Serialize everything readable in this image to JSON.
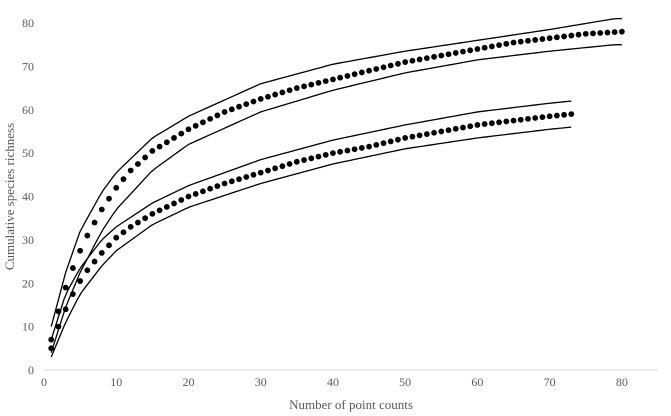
{
  "chart_data": {
    "type": "scatter",
    "title": "",
    "xlabel": "Number of point counts",
    "ylabel": "Cumulative species richness",
    "xlim": [
      0,
      85
    ],
    "ylim": [
      0,
      80
    ],
    "x_ticks": [
      0,
      10,
      20,
      30,
      40,
      50,
      60,
      70,
      80
    ],
    "y_ticks": [
      0,
      10,
      20,
      30,
      40,
      50,
      60,
      70,
      80
    ],
    "grid": false,
    "legend": "none",
    "colors": {
      "points": "#000000",
      "bounds": "#000000",
      "axis": "#d9d9d9",
      "text": "#595959"
    },
    "series": [
      {
        "curve": {
          "x": [
            1,
            2,
            3,
            4,
            5,
            6,
            8,
            10,
            12,
            15,
            20,
            25,
            30,
            35,
            40,
            45,
            50,
            55,
            60,
            65,
            70,
            75,
            80
          ],
          "y": [
            7,
            13.5,
            19,
            23.5,
            27.5,
            31,
            37,
            42,
            46,
            50.5,
            55.5,
            59.5,
            62.5,
            65,
            67,
            69,
            71,
            72.5,
            74,
            75.5,
            76.5,
            77.5,
            78
          ]
        },
        "upper": {
          "x": [
            1,
            3,
            5,
            8,
            10,
            15,
            20,
            30,
            40,
            50,
            60,
            70,
            79,
            80
          ],
          "y": [
            10,
            22.5,
            32,
            41,
            45.5,
            53.5,
            58.5,
            66,
            70.5,
            73.5,
            76,
            78.5,
            81,
            81
          ]
        },
        "lower": {
          "x": [
            1,
            3,
            5,
            8,
            10,
            15,
            20,
            30,
            40,
            50,
            60,
            70,
            79,
            80
          ],
          "y": [
            4,
            14.5,
            22.5,
            32,
            37,
            46,
            52,
            59.5,
            64.5,
            68.5,
            71.5,
            73.5,
            75,
            75
          ]
        }
      },
      {
        "curve": {
          "x": [
            1,
            2,
            3,
            4,
            5,
            6,
            8,
            10,
            12,
            15,
            20,
            25,
            30,
            35,
            40,
            45,
            50,
            55,
            60,
            65,
            70,
            73
          ],
          "y": [
            5,
            10,
            14,
            17.5,
            20.5,
            23,
            27,
            30.5,
            33,
            36,
            40,
            43,
            45.5,
            48,
            50,
            51.5,
            53.5,
            55,
            56.5,
            57.5,
            58.5,
            59
          ]
        },
        "upper": {
          "x": [
            1,
            3,
            5,
            8,
            10,
            15,
            20,
            30,
            40,
            50,
            60,
            70,
            73
          ],
          "y": [
            7,
            17.5,
            23.5,
            30,
            33,
            38.5,
            42.5,
            48.5,
            53,
            56.5,
            59.5,
            61.5,
            62
          ]
        },
        "lower": {
          "x": [
            1,
            3,
            5,
            8,
            10,
            15,
            20,
            30,
            40,
            50,
            60,
            70,
            73
          ],
          "y": [
            3,
            11,
            17.5,
            24,
            27.5,
            33.5,
            37.5,
            43,
            47.5,
            51,
            53.5,
            55.5,
            56
          ]
        }
      }
    ]
  }
}
